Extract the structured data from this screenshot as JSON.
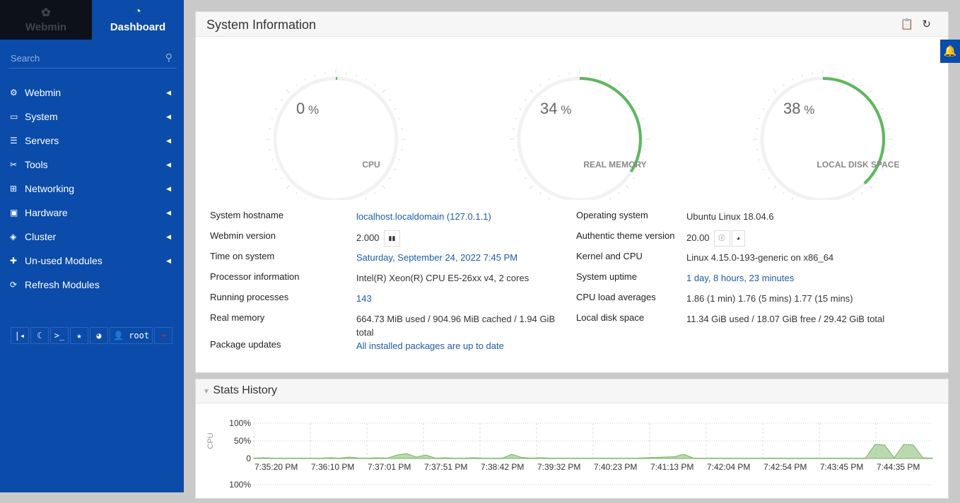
{
  "sidebar": {
    "tabs": [
      {
        "label": "Webmin",
        "icon": "webmin-logo-icon"
      },
      {
        "label": "Dashboard",
        "icon": "dashboard-icon"
      }
    ],
    "search_placeholder": "Search",
    "items": [
      {
        "label": "Webmin",
        "icon": "gear-icon"
      },
      {
        "label": "System",
        "icon": "laptop-icon"
      },
      {
        "label": "Servers",
        "icon": "server-icon"
      },
      {
        "label": "Tools",
        "icon": "tools-icon"
      },
      {
        "label": "Networking",
        "icon": "network-icon"
      },
      {
        "label": "Hardware",
        "icon": "hdd-icon"
      },
      {
        "label": "Cluster",
        "icon": "layers-icon"
      },
      {
        "label": "Un-used Modules",
        "icon": "puzzle-icon"
      },
      {
        "label": "Refresh Modules",
        "icon": "refresh-icon"
      }
    ],
    "user": "root"
  },
  "sysinfo": {
    "title": "System Information",
    "gauges": [
      {
        "label": "CPU",
        "value": 0
      },
      {
        "label": "REAL MEMORY",
        "value": 34
      },
      {
        "label": "LOCAL DISK SPACE",
        "value": 38
      }
    ],
    "gauge_color": "#5cb85c",
    "left": [
      {
        "k": "System hostname",
        "v": "localhost.localdomain (127.0.1.1)",
        "link": true
      },
      {
        "k": "Webmin version",
        "v": "2.000"
      },
      {
        "k": "Time on system",
        "v": "Saturday, September 24, 2022 7:45 PM",
        "link": true
      },
      {
        "k": "Processor information",
        "v": "Intel(R) Xeon(R) CPU E5-26xx v4, 2 cores"
      },
      {
        "k": "Running processes",
        "v": "143",
        "link": true
      },
      {
        "k": "Real memory",
        "v": "664.73 MiB used / 904.96 MiB cached / 1.94 GiB total"
      },
      {
        "k": "Package updates",
        "v": "All installed packages are up to date",
        "link": true
      }
    ],
    "right": [
      {
        "k": "Operating system",
        "v": "Ubuntu Linux 18.04.6"
      },
      {
        "k": "Authentic theme version",
        "v": "20.00"
      },
      {
        "k": "Kernel and CPU",
        "v": "Linux 4.15.0-193-generic on x86_64"
      },
      {
        "k": "System uptime",
        "v": "1 day, 8 hours, 23 minutes",
        "link": true
      },
      {
        "k": "CPU load averages",
        "v": "1.86 (1 min) 1.76 (5 mins) 1.77 (15 mins)"
      },
      {
        "k": "Local disk space",
        "v": "11.34 GiB used / 18.07 GiB free / 29.42 GiB total"
      }
    ]
  },
  "stats": {
    "title": "Stats History"
  },
  "chart_data": {
    "type": "area",
    "ylabel": "CPU",
    "yticks": [
      "100%",
      "50%",
      "0"
    ],
    "ylim": [
      0,
      100
    ],
    "xticks": [
      "7:35:20 PM",
      "7:36:10 PM",
      "7:37:01 PM",
      "7:37:51 PM",
      "7:38:42 PM",
      "7:39:32 PM",
      "7:40:23 PM",
      "7:41:13 PM",
      "7:42:04 PM",
      "7:42:54 PM",
      "7:43:45 PM",
      "7:44:35 PM"
    ],
    "values": [
      1,
      2,
      1,
      1,
      1,
      1,
      1,
      1,
      2,
      1,
      4,
      1,
      1,
      2,
      1,
      10,
      14,
      4,
      10,
      1,
      2,
      1,
      1,
      2,
      1,
      1,
      1,
      12,
      3,
      1,
      2,
      1,
      1,
      1,
      1,
      1,
      1,
      1,
      1,
      1,
      1,
      2,
      3,
      4,
      5,
      12,
      1,
      1,
      1,
      1,
      1,
      1,
      1,
      1,
      1,
      1,
      1,
      1,
      1,
      1,
      1,
      1,
      1,
      1,
      1,
      40,
      38,
      2,
      40,
      38,
      2,
      1
    ],
    "color": "#8dbf78",
    "second_chart_top_tick": "100%"
  }
}
